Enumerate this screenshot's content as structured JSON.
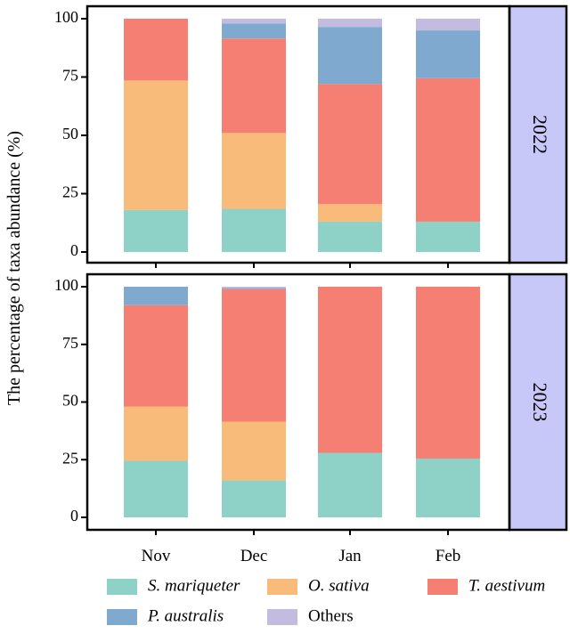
{
  "chart_data": {
    "type": "bar",
    "stacked": true,
    "ylabel": "The percentage of taxa abundance (%)",
    "xlabel": "",
    "ylim": [
      0,
      100
    ],
    "yticks": [
      0,
      25,
      50,
      75,
      100
    ],
    "categories": [
      "Nov",
      "Dec",
      "Jan",
      "Feb"
    ],
    "series_names": [
      "S. mariqueter",
      "O. sativa",
      "T. aestivum",
      "P. australis",
      "Others"
    ],
    "series_colors": [
      "#8ed1c6",
      "#f8bb7a",
      "#f47f72",
      "#80a9cf",
      "#c3bce0"
    ],
    "italic_series": [
      true,
      true,
      true,
      true,
      false
    ],
    "legend_position": "bottom",
    "panels": [
      {
        "strip_label": "2022",
        "series": [
          {
            "name": "S. mariqueter",
            "values": [
              18,
              18.5,
              13,
              13
            ]
          },
          {
            "name": "O. sativa",
            "values": [
              55.5,
              32.5,
              7.5,
              0
            ]
          },
          {
            "name": "T. aestivum",
            "values": [
              26.5,
              40.5,
              51.5,
              61.5
            ]
          },
          {
            "name": "P. australis",
            "values": [
              0,
              6.5,
              24.5,
              20.5
            ]
          },
          {
            "name": "Others",
            "values": [
              0,
              2,
              3.5,
              5
            ]
          }
        ]
      },
      {
        "strip_label": "2023",
        "series": [
          {
            "name": "S. mariqueter",
            "values": [
              24.5,
              16,
              28,
              25.5
            ]
          },
          {
            "name": "O. sativa",
            "values": [
              23.5,
              25.5,
              0,
              0
            ]
          },
          {
            "name": "T. aestivum",
            "values": [
              44,
              57.5,
              72,
              74.5
            ]
          },
          {
            "name": "P. australis",
            "values": [
              8,
              0.5,
              0,
              0
            ]
          },
          {
            "name": "Others",
            "values": [
              0,
              0.5,
              0,
              0
            ]
          }
        ]
      }
    ]
  }
}
